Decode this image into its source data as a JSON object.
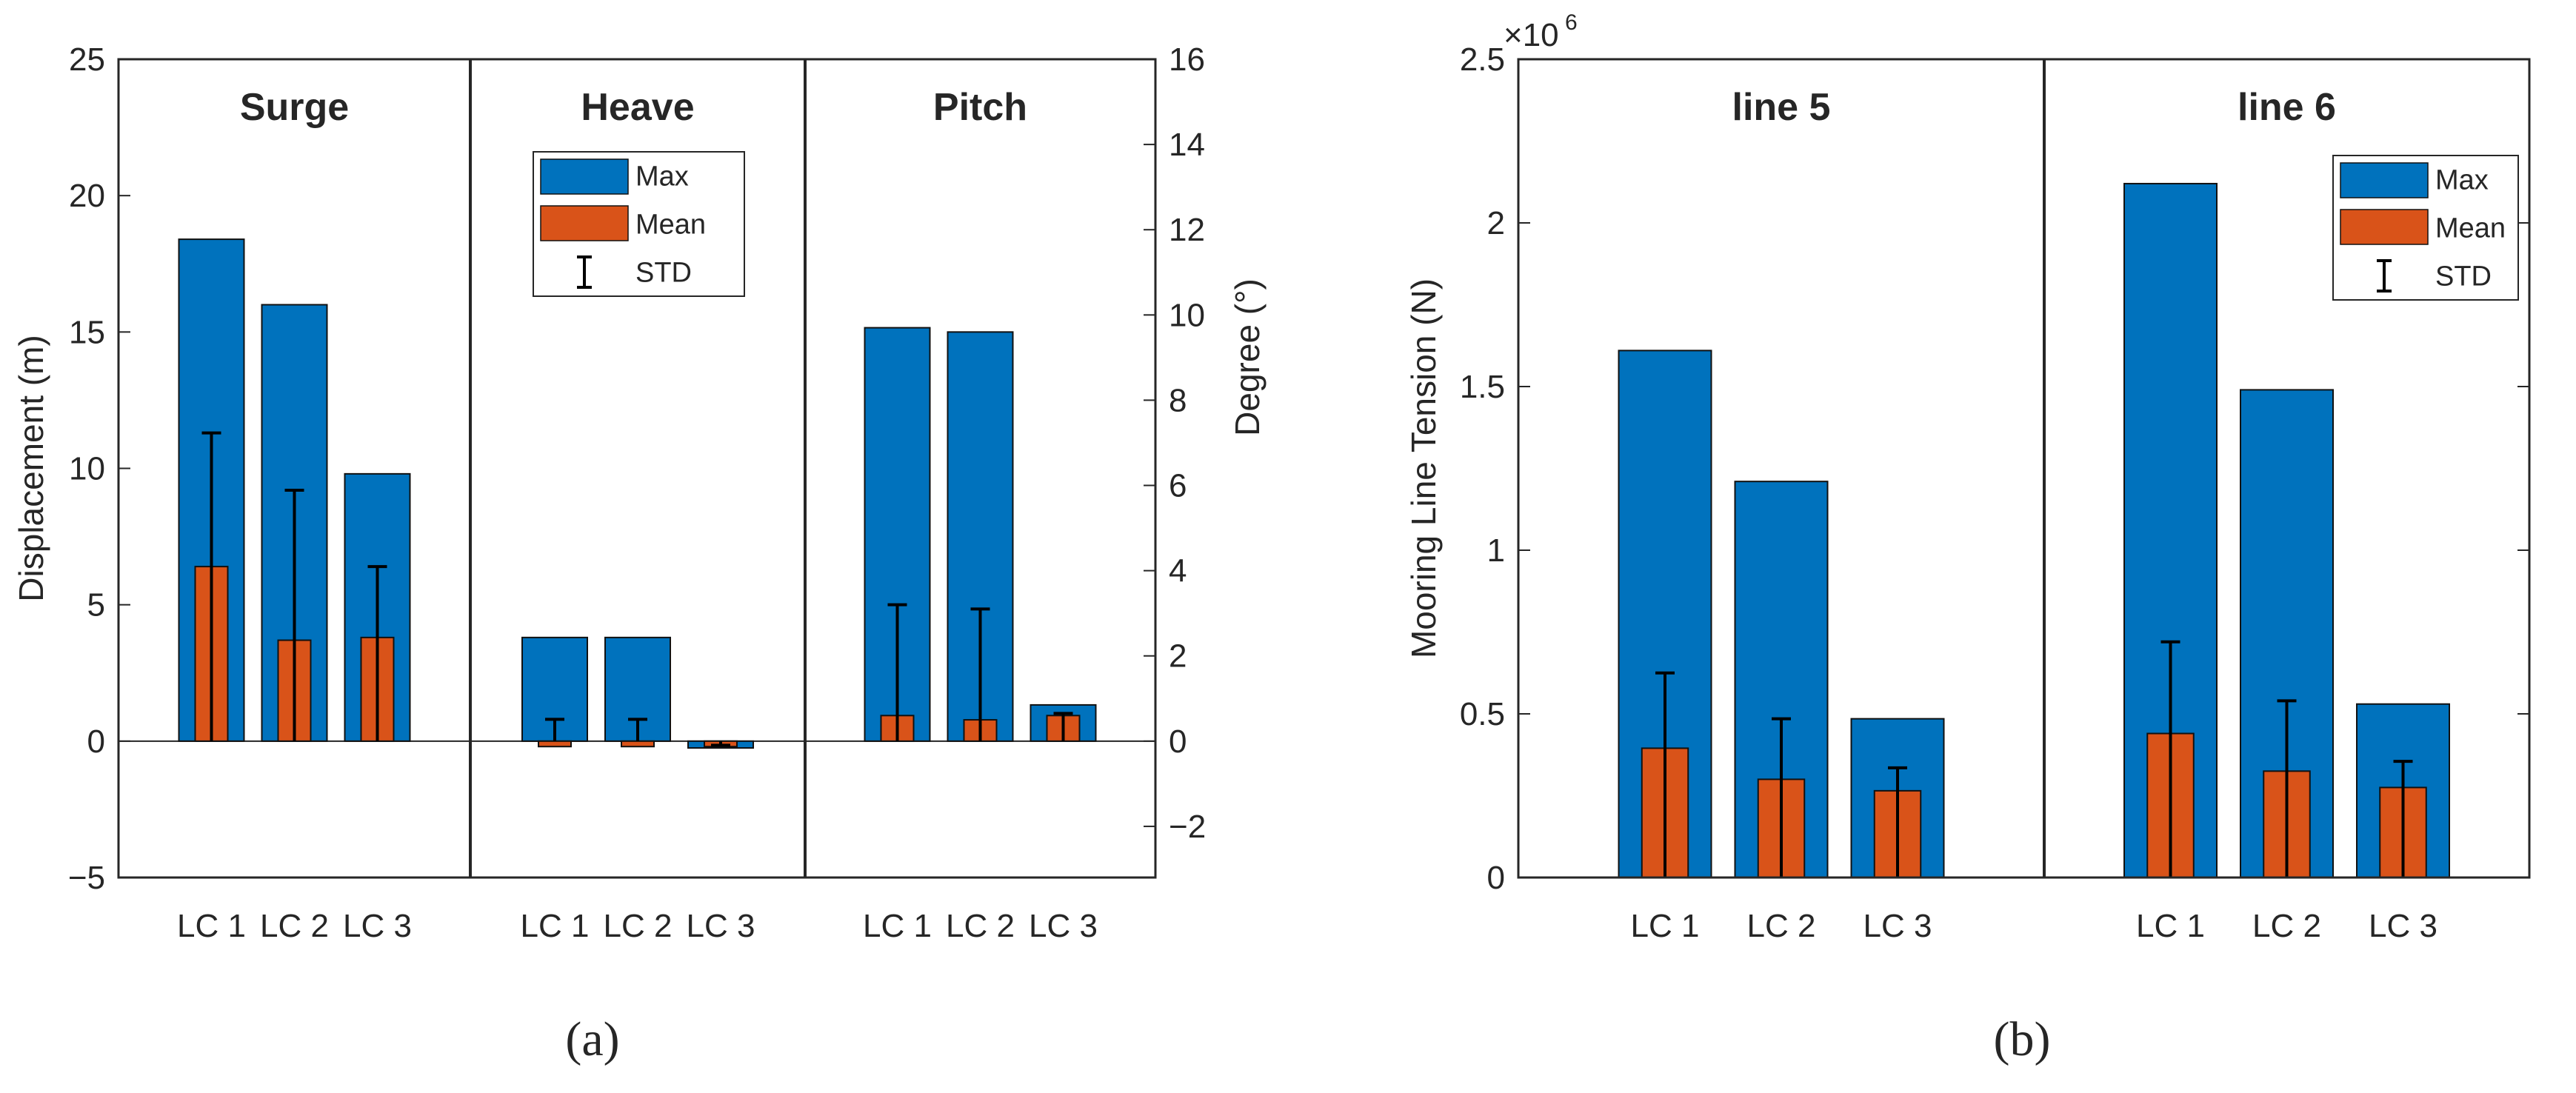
{
  "colors": {
    "max": "#0072BD",
    "mean": "#D95319",
    "std": "#000000",
    "axis": "#262626",
    "background": "#ffffff"
  },
  "chart_data": [
    {
      "type": "bar",
      "panel_label": "(a)",
      "groups": [
        "Surge",
        "Heave",
        "Pitch"
      ],
      "categories": [
        "LC 1",
        "LC 2",
        "LC 3"
      ],
      "left_axis": {
        "label": "Displacement (m)",
        "ylim": [
          -5,
          25
        ],
        "ticks": [
          "−5",
          "0",
          "5",
          "10",
          "15",
          "20",
          "25"
        ],
        "tick_values": [
          -5,
          0,
          5,
          10,
          15,
          20,
          25
        ]
      },
      "right_axis": {
        "label": "Degree (°)",
        "ylim": [
          -3.2,
          16
        ],
        "ticks": [
          "−2",
          "0",
          "2",
          "4",
          "6",
          "8",
          "10",
          "12",
          "14",
          "16"
        ],
        "tick_values": [
          -2,
          0,
          2,
          4,
          6,
          8,
          10,
          12,
          14,
          16
        ]
      },
      "legend": {
        "position": "top-right",
        "entries": [
          "Max",
          "Mean",
          "STD"
        ]
      },
      "series": [
        {
          "name": "Max",
          "values": {
            "Surge": [
              18.4,
              16.0,
              9.8
            ],
            "Heave": [
              3.8,
              3.8,
              -0.25
            ],
            "Pitch": [
              9.7,
              9.6,
              0.85
            ]
          }
        },
        {
          "name": "Mean",
          "values": {
            "Surge": [
              6.4,
              3.7,
              3.8
            ],
            "Heave": [
              -0.2,
              -0.2,
              -0.2
            ],
            "Pitch": [
              0.6,
              0.5,
              0.6
            ]
          }
        },
        {
          "name": "STD",
          "values": {
            "Surge": [
              4.9,
              5.5,
              2.6
            ],
            "Heave": [
              1.0,
              1.0,
              0.05
            ],
            "Pitch": [
              2.6,
              2.6,
              0.05
            ]
          }
        }
      ],
      "axis_units": {
        "Surge": "left",
        "Heave": "left",
        "Pitch": "right"
      }
    },
    {
      "type": "bar",
      "panel_label": "(b)",
      "groups": [
        "line 5",
        "line 6"
      ],
      "categories": [
        "LC 1",
        "LC 2",
        "LC 3"
      ],
      "ylabel": "Mooring Line Tension (N)",
      "exponent_label": "×10",
      "exponent_power": "6",
      "ylim": [
        0,
        2.5
      ],
      "ticks": [
        "0",
        "0.5",
        "1",
        "1.5",
        "2",
        "2.5"
      ],
      "tick_values": [
        0,
        0.5,
        1,
        1.5,
        2,
        2.5
      ],
      "legend": {
        "position": "top-right",
        "entries": [
          "Max",
          "Mean",
          "STD"
        ]
      },
      "series": [
        {
          "name": "Max",
          "values": {
            "line 5": [
              1.61,
              1.21,
              0.485
            ],
            "line 6": [
              2.12,
              1.49,
              0.53
            ]
          }
        },
        {
          "name": "Mean",
          "values": {
            "line 5": [
              0.395,
              0.3,
              0.265
            ],
            "line 6": [
              0.44,
              0.325,
              0.275
            ]
          }
        },
        {
          "name": "STD",
          "values": {
            "line 5": [
              0.23,
              0.185,
              0.07
            ],
            "line 6": [
              0.28,
              0.215,
              0.08
            ]
          }
        }
      ]
    }
  ]
}
